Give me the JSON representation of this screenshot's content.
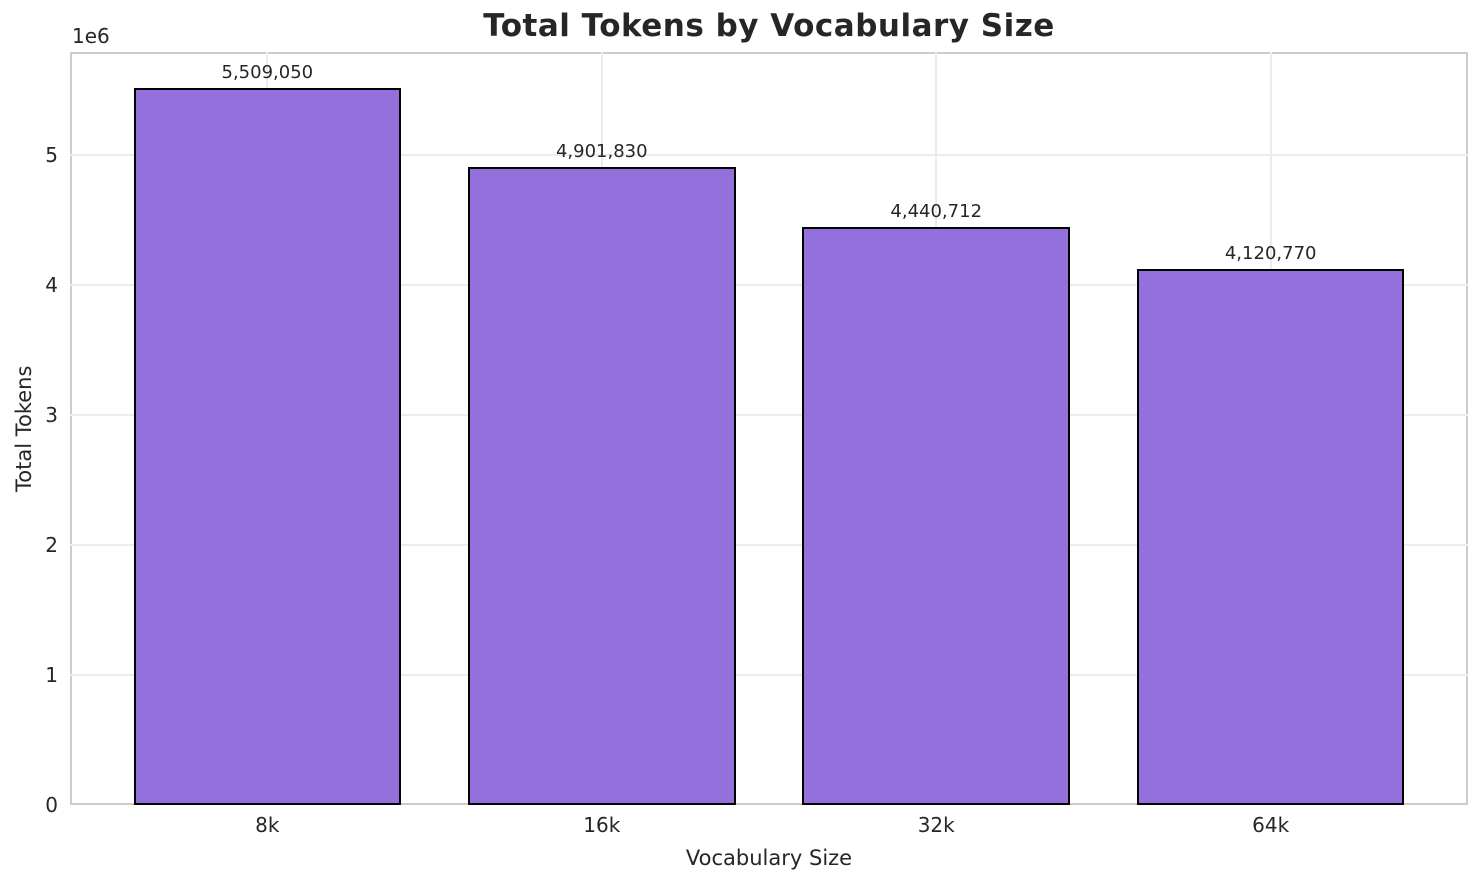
{
  "chart_data": {
    "type": "bar",
    "title": "Total Tokens by Vocabulary Size",
    "xlabel": "Vocabulary Size",
    "ylabel": "Total Tokens",
    "y_offset_text": "1e6",
    "categories": [
      "8k",
      "16k",
      "32k",
      "64k"
    ],
    "values": [
      5509050,
      4901830,
      4440712,
      4120770
    ],
    "value_labels": [
      "5,509,050",
      "4,901,830",
      "4,440,712",
      "4,120,770"
    ],
    "yticks": [
      0,
      1,
      2,
      3,
      4,
      5
    ],
    "ytick_unit": 1000000,
    "ylim": [
      0,
      5788000
    ],
    "grid": true,
    "legend": false,
    "bar_width_fraction": 0.8,
    "colors": {
      "bar_fill": "#9370db",
      "bar_edge": "#000000",
      "grid": "#ececec",
      "spine": "#cccccc",
      "text": "#262626",
      "background": "#ffffff"
    }
  }
}
